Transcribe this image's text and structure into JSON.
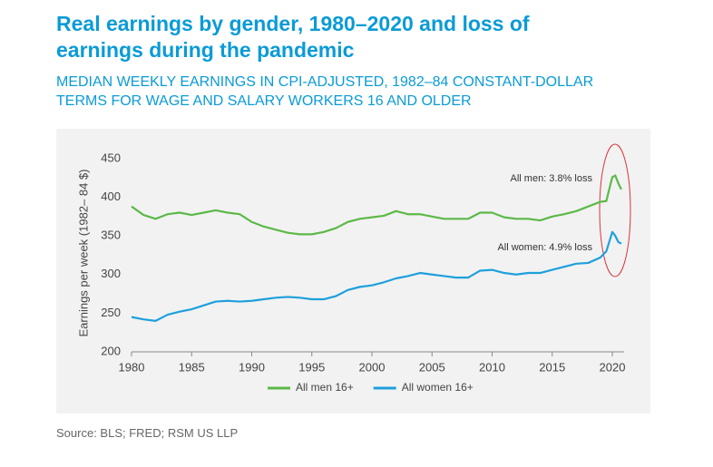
{
  "chart_data": {
    "type": "line",
    "title": "Real earnings by gender, 1980–2020 and loss of earnings during the pandemic",
    "subtitle": "MEDIAN WEEKLY EARNINGS IN CPI-ADJUSTED, 1982–84 CONSTANT-DOLLAR TERMS FOR WAGE AND SALARY WORKERS 16 AND OLDER",
    "y_label": "Earnings per week (1982– 84 $)",
    "source": "Source: BLS; FRED; RSM US LLP",
    "annotations": [
      "All men: 3.8% loss",
      "All women: 4.9% loss"
    ],
    "x": [
      1980,
      1981,
      1982,
      1983,
      1984,
      1985,
      1986,
      1987,
      1988,
      1989,
      1990,
      1991,
      1992,
      1993,
      1994,
      1995,
      1996,
      1997,
      1998,
      1999,
      2000,
      2001,
      2002,
      2003,
      2004,
      2005,
      2006,
      2007,
      2008,
      2009,
      2010,
      2011,
      2012,
      2013,
      2014,
      2015,
      2016,
      2017,
      2018,
      2019,
      2019.5,
      2020,
      2020.25,
      2020.5,
      2020.75
    ],
    "series": [
      {
        "name": "All men 16+",
        "color": "#5cb947",
        "values": [
          388,
          377,
          372,
          378,
          380,
          377,
          380,
          383,
          380,
          378,
          368,
          362,
          358,
          354,
          352,
          352,
          355,
          360,
          368,
          372,
          374,
          376,
          382,
          378,
          378,
          375,
          372,
          372,
          372,
          380,
          380,
          374,
          372,
          372,
          370,
          375,
          378,
          382,
          388,
          394,
          395,
          426,
          428,
          418,
          410
        ]
      },
      {
        "name": "All women 16+",
        "color": "#1ea0dc",
        "values": [
          245,
          242,
          240,
          248,
          252,
          255,
          260,
          265,
          266,
          265,
          266,
          268,
          270,
          271,
          270,
          268,
          268,
          272,
          280,
          284,
          286,
          290,
          295,
          298,
          302,
          300,
          298,
          296,
          296,
          305,
          306,
          302,
          300,
          302,
          302,
          306,
          310,
          314,
          315,
          322,
          330,
          355,
          350,
          342,
          340
        ]
      }
    ],
    "xlim": [
      1980,
      2021
    ],
    "xticks": [
      1980,
      1985,
      1990,
      1995,
      2000,
      2005,
      2010,
      2015,
      2020
    ],
    "ylim": [
      200,
      460
    ],
    "yticks": [
      200,
      250,
      300,
      350,
      400,
      450
    ],
    "grid": false,
    "legend": "bottom"
  }
}
